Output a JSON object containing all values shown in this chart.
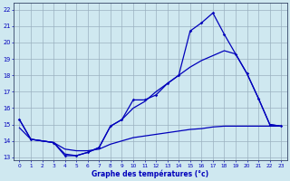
{
  "xlabel": "Graphe des températures (°c)",
  "xlim": [
    -0.5,
    23.5
  ],
  "ylim": [
    12.8,
    22.4
  ],
  "yticks": [
    13,
    14,
    15,
    16,
    17,
    18,
    19,
    20,
    21,
    22
  ],
  "xticks": [
    0,
    1,
    2,
    3,
    4,
    5,
    6,
    7,
    8,
    9,
    10,
    11,
    12,
    13,
    14,
    15,
    16,
    17,
    18,
    19,
    20,
    21,
    22,
    23
  ],
  "bg_color": "#cfe8f0",
  "line_color": "#0000bb",
  "grid_color": "#9ab0c0",
  "curve1_x": [
    0,
    1,
    3,
    4,
    5,
    6,
    7,
    8,
    9,
    10,
    11,
    12,
    13,
    14,
    15,
    16,
    17,
    18,
    19,
    20,
    21,
    22,
    23
  ],
  "curve1_y": [
    15.3,
    14.1,
    13.9,
    13.1,
    13.1,
    13.3,
    13.6,
    14.9,
    15.3,
    16.5,
    16.5,
    16.8,
    17.5,
    18.0,
    20.7,
    21.2,
    21.8,
    20.5,
    19.3,
    18.1,
    16.6,
    15.0,
    14.9
  ],
  "curve2_x": [
    0,
    1,
    3,
    4,
    5,
    6,
    7,
    8,
    9,
    10,
    11,
    12,
    13,
    14,
    15,
    16,
    17,
    18,
    19,
    20,
    21,
    22,
    23
  ],
  "curve2_y": [
    15.3,
    14.1,
    13.9,
    13.2,
    13.1,
    13.3,
    13.6,
    14.9,
    15.3,
    16.0,
    16.4,
    17.0,
    17.5,
    18.0,
    18.5,
    18.9,
    19.2,
    19.5,
    19.3,
    18.1,
    16.6,
    15.0,
    14.9
  ],
  "curve3_x": [
    0,
    1,
    3,
    4,
    5,
    6,
    7,
    8,
    9,
    10,
    11,
    12,
    13,
    14,
    15,
    16,
    17,
    18,
    19,
    20,
    21,
    22,
    23
  ],
  "curve3_y": [
    14.8,
    14.1,
    13.9,
    13.5,
    13.4,
    13.4,
    13.5,
    13.8,
    14.0,
    14.2,
    14.3,
    14.4,
    14.5,
    14.6,
    14.7,
    14.75,
    14.85,
    14.9,
    14.9,
    14.9,
    14.9,
    14.9,
    14.9
  ]
}
